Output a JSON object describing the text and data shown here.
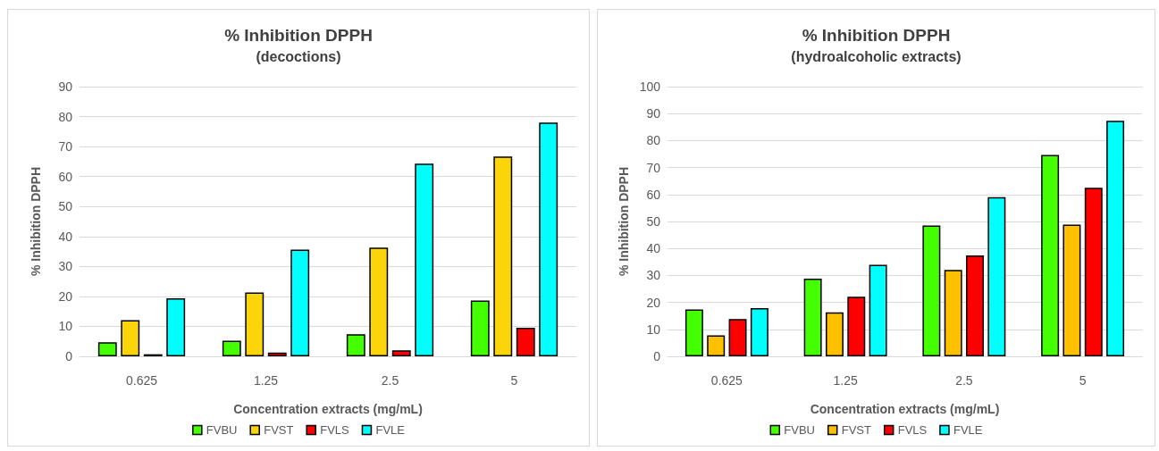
{
  "chart_data": [
    {
      "type": "bar",
      "title": "% Inhibition DPPH",
      "subtitle": "(decoctions)",
      "xlabel": "Concentration extracts (mg/mL)",
      "ylabel": "% Inhibition DPPH",
      "categories": [
        "0.625",
        "1.25",
        "2.5",
        "5"
      ],
      "series": [
        {
          "name": "FVBU",
          "color": "#44ff00",
          "values": [
            4.7,
            5.2,
            7.4,
            18.6
          ]
        },
        {
          "name": "FVST",
          "color": "#fcd40a",
          "values": [
            12.1,
            21.3,
            36.3,
            66.7
          ]
        },
        {
          "name": "FVLS",
          "color": "#ff0000",
          "values": [
            0.7,
            1.3,
            2.0,
            9.5
          ]
        },
        {
          "name": "FVLE",
          "color": "#00ffff",
          "values": [
            19.4,
            35.6,
            64.3,
            78.0
          ]
        }
      ],
      "ylim": [
        0,
        90
      ],
      "yticks": [
        0,
        10,
        20,
        30,
        40,
        50,
        60,
        70,
        80,
        90
      ],
      "grid": "y",
      "legend": "bottom"
    },
    {
      "type": "bar",
      "title": "% Inhibition DPPH",
      "subtitle": "(hydroalcoholic extracts)",
      "xlabel": "Concentration extracts (mg/mL)",
      "ylabel": "% Inhibition DPPH",
      "categories": [
        "0.625",
        "1.25",
        "2.5",
        "5"
      ],
      "series": [
        {
          "name": "FVBU",
          "color": "#44ff00",
          "values": [
            17.4,
            28.8,
            48.5,
            74.7
          ]
        },
        {
          "name": "FVST",
          "color": "#ffc000",
          "values": [
            7.8,
            16.3,
            32.0,
            48.8
          ]
        },
        {
          "name": "FVLS",
          "color": "#ff0000",
          "values": [
            13.8,
            22.1,
            37.4,
            62.5
          ]
        },
        {
          "name": "FVLE",
          "color": "#00ffff",
          "values": [
            17.9,
            33.9,
            59.0,
            87.3
          ]
        }
      ],
      "ylim": [
        0,
        100
      ],
      "yticks": [
        0,
        10,
        20,
        30,
        40,
        50,
        60,
        70,
        80,
        90,
        100
      ],
      "grid": "y",
      "legend": "bottom"
    }
  ]
}
